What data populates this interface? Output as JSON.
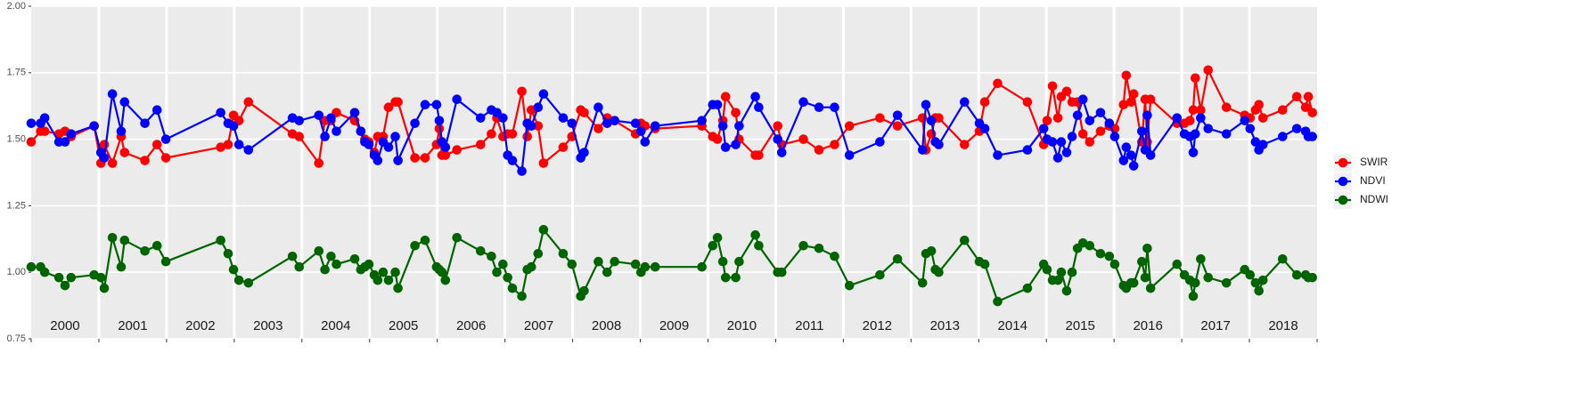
{
  "chart_data": {
    "type": "line",
    "facets": [
      "2000",
      "2001",
      "2002",
      "2003",
      "2004",
      "2005",
      "2006",
      "2007",
      "2008",
      "2009",
      "2010",
      "2011",
      "2012",
      "2013",
      "2014",
      "2015",
      "2016",
      "2017",
      "2018"
    ],
    "x": [
      2000.0,
      2000.14,
      2000.2,
      2000.41,
      2000.5,
      2000.59,
      2000.93,
      2001.03,
      2001.08,
      2001.2,
      2001.33,
      2001.38,
      2001.68,
      2001.86,
      2001.99,
      2002.8,
      2002.91,
      2002.99,
      2003.07,
      2003.21,
      2003.86,
      2003.96,
      2004.25,
      2004.34,
      2004.43,
      2004.51,
      2004.78,
      2004.87,
      2004.93,
      2004.99,
      2005.07,
      2005.12,
      2005.2,
      2005.28,
      2005.38,
      2005.42,
      2005.67,
      2005.82,
      2005.99,
      2006.03,
      2006.07,
      2006.12,
      2006.29,
      2006.64,
      2006.8,
      2006.88,
      2006.97,
      2007.04,
      2007.11,
      2007.25,
      2007.33,
      2007.39,
      2007.49,
      2007.57,
      2007.86,
      2007.99,
      2008.12,
      2008.17,
      2008.38,
      2008.51,
      2008.62,
      2008.93,
      2009.01,
      2009.07,
      2009.22,
      2009.91,
      2010.07,
      2010.14,
      2010.22,
      2010.26,
      2010.41,
      2010.46,
      2010.7,
      2010.75,
      2011.03,
      2011.09,
      2011.41,
      2011.64,
      2011.87,
      2012.09,
      2012.54,
      2012.8,
      2013.17,
      2013.22,
      2013.3,
      2013.36,
      2013.41,
      2013.79,
      2014.01,
      2014.09,
      2014.28,
      2014.72,
      2014.96,
      2015.01,
      2015.09,
      2015.17,
      2015.22,
      2015.3,
      2015.38,
      2015.46,
      2015.54,
      2015.64,
      2015.8,
      2015.93,
      2016.01,
      2016.14,
      2016.18,
      2016.25,
      2016.29,
      2016.41,
      2016.46,
      2016.49,
      2016.54,
      2016.93,
      2017.04,
      2017.12,
      2017.17,
      2017.2,
      2017.28,
      2017.39,
      2017.66,
      2017.93,
      2018.01,
      2018.09,
      2018.14,
      2018.2,
      2018.49,
      2018.7,
      2018.83,
      2018.87,
      2018.93
    ],
    "series": [
      {
        "name": "SWIR",
        "color": "#ff0000",
        "values": [
          1.49,
          1.53,
          1.53,
          1.52,
          1.53,
          1.51,
          1.55,
          1.41,
          1.48,
          1.41,
          1.51,
          1.45,
          1.42,
          1.48,
          1.43,
          1.47,
          1.48,
          1.59,
          1.57,
          1.64,
          1.52,
          1.51,
          1.41,
          1.57,
          1.57,
          1.6,
          1.57,
          1.53,
          1.5,
          1.49,
          1.45,
          1.51,
          1.51,
          1.62,
          1.64,
          1.64,
          1.43,
          1.43,
          1.48,
          1.54,
          1.44,
          1.44,
          1.46,
          1.48,
          1.52,
          1.58,
          1.51,
          1.52,
          1.52,
          1.68,
          1.51,
          1.61,
          1.55,
          1.41,
          1.47,
          1.51,
          1.61,
          1.6,
          1.54,
          1.58,
          1.57,
          1.52,
          1.56,
          1.55,
          1.54,
          1.55,
          1.51,
          1.5,
          1.57,
          1.66,
          1.6,
          1.5,
          1.44,
          1.44,
          1.55,
          1.48,
          1.5,
          1.46,
          1.48,
          1.55,
          1.58,
          1.55,
          1.58,
          1.46,
          1.52,
          1.58,
          1.58,
          1.48,
          1.53,
          1.64,
          1.71,
          1.64,
          1.48,
          1.57,
          1.7,
          1.58,
          1.66,
          1.68,
          1.64,
          1.64,
          1.52,
          1.49,
          1.53,
          1.55,
          1.54,
          1.63,
          1.74,
          1.64,
          1.67,
          1.49,
          1.65,
          1.49,
          1.65,
          1.56,
          1.56,
          1.57,
          1.61,
          1.73,
          1.61,
          1.76,
          1.62,
          1.59,
          1.58,
          1.61,
          1.63,
          1.58,
          1.61,
          1.66,
          1.62,
          1.66,
          1.6
        ]
      },
      {
        "name": "NDVI",
        "color": "#0000ff",
        "values": [
          1.56,
          1.56,
          1.58,
          1.49,
          1.49,
          1.52,
          1.55,
          1.45,
          1.43,
          1.67,
          1.53,
          1.64,
          1.56,
          1.61,
          1.5,
          1.6,
          1.56,
          1.55,
          1.48,
          1.46,
          1.58,
          1.57,
          1.59,
          1.51,
          1.58,
          1.53,
          1.6,
          1.53,
          1.49,
          1.48,
          1.44,
          1.42,
          1.49,
          1.47,
          1.51,
          1.42,
          1.56,
          1.63,
          1.63,
          1.57,
          1.49,
          1.47,
          1.65,
          1.58,
          1.61,
          1.6,
          1.58,
          1.44,
          1.42,
          1.38,
          1.56,
          1.55,
          1.62,
          1.67,
          1.58,
          1.56,
          1.43,
          1.45,
          1.62,
          1.56,
          1.57,
          1.56,
          1.53,
          1.49,
          1.55,
          1.57,
          1.63,
          1.63,
          1.55,
          1.47,
          1.48,
          1.55,
          1.66,
          1.62,
          1.5,
          1.45,
          1.64,
          1.62,
          1.62,
          1.44,
          1.49,
          1.59,
          1.46,
          1.63,
          1.57,
          1.49,
          1.48,
          1.64,
          1.56,
          1.54,
          1.44,
          1.46,
          1.54,
          1.5,
          1.49,
          1.43,
          1.49,
          1.45,
          1.51,
          1.59,
          1.65,
          1.57,
          1.6,
          1.56,
          1.51,
          1.42,
          1.47,
          1.44,
          1.4,
          1.53,
          1.46,
          1.59,
          1.44,
          1.58,
          1.52,
          1.51,
          1.45,
          1.52,
          1.58,
          1.54,
          1.52,
          1.57,
          1.54,
          1.49,
          1.46,
          1.48,
          1.51,
          1.54,
          1.53,
          1.51,
          1.51
        ]
      },
      {
        "name": "NDWI",
        "color": "#006400",
        "values": [
          1.02,
          1.02,
          1.0,
          0.98,
          0.95,
          0.98,
          0.99,
          0.98,
          0.94,
          1.13,
          1.02,
          1.12,
          1.08,
          1.1,
          1.04,
          1.12,
          1.07,
          1.01,
          0.97,
          0.96,
          1.06,
          1.02,
          1.08,
          1.01,
          1.06,
          1.03,
          1.05,
          1.01,
          1.02,
          1.03,
          0.99,
          0.97,
          1.0,
          0.97,
          1.0,
          0.94,
          1.1,
          1.12,
          1.02,
          1.01,
          1.0,
          0.97,
          1.13,
          1.08,
          1.06,
          1.0,
          1.03,
          0.98,
          0.94,
          0.91,
          1.01,
          1.02,
          1.07,
          1.16,
          1.07,
          1.03,
          0.91,
          0.93,
          1.04,
          1.0,
          1.04,
          1.03,
          1.0,
          1.02,
          1.02,
          1.02,
          1.1,
          1.13,
          1.04,
          0.98,
          0.98,
          1.04,
          1.14,
          1.1,
          1.0,
          1.0,
          1.1,
          1.09,
          1.06,
          0.95,
          0.99,
          1.05,
          0.96,
          1.07,
          1.08,
          1.01,
          1.0,
          1.12,
          1.04,
          1.03,
          0.89,
          0.94,
          1.03,
          1.01,
          0.97,
          0.97,
          1.0,
          0.93,
          1.0,
          1.09,
          1.11,
          1.1,
          1.07,
          1.06,
          1.03,
          0.95,
          0.94,
          0.96,
          0.96,
          1.04,
          0.98,
          1.09,
          0.94,
          1.03,
          0.99,
          0.97,
          0.91,
          0.96,
          1.05,
          0.98,
          0.96,
          1.01,
          0.99,
          0.96,
          0.93,
          0.97,
          1.05,
          0.99,
          0.99,
          0.98,
          0.98
        ]
      }
    ],
    "xlim": [
      2000,
      2019
    ],
    "ylim": [
      0.75,
      2.0
    ],
    "yticks": [
      0.75,
      {
        "value": 1.0,
        "label": "1.00"
      },
      1.25,
      {
        "value": 1.5,
        "label": "1.50"
      },
      1.75,
      {
        "value": 2.0,
        "label": "2.00"
      }
    ],
    "grid": true
  }
}
